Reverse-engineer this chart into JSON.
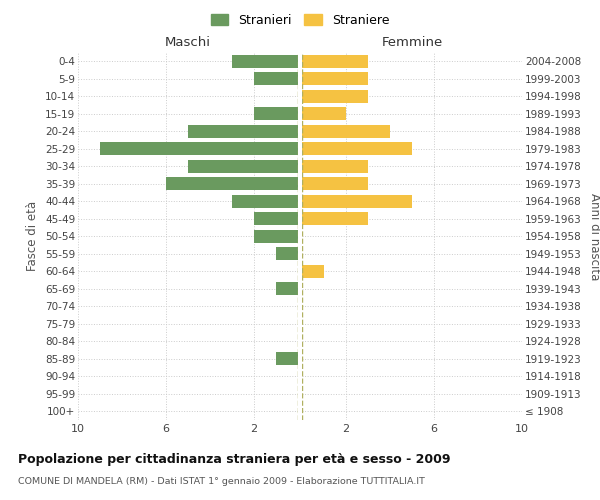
{
  "age_groups": [
    "0-4",
    "5-9",
    "10-14",
    "15-19",
    "20-24",
    "25-29",
    "30-34",
    "35-39",
    "40-44",
    "45-49",
    "50-54",
    "55-59",
    "60-64",
    "65-69",
    "70-74",
    "75-79",
    "80-84",
    "85-89",
    "90-94",
    "95-99",
    "100+"
  ],
  "birth_years": [
    "2004-2008",
    "1999-2003",
    "1994-1998",
    "1989-1993",
    "1984-1988",
    "1979-1983",
    "1974-1978",
    "1969-1973",
    "1964-1968",
    "1959-1963",
    "1954-1958",
    "1949-1953",
    "1944-1948",
    "1939-1943",
    "1934-1938",
    "1929-1933",
    "1924-1928",
    "1919-1923",
    "1914-1918",
    "1909-1913",
    "≤ 1908"
  ],
  "males": [
    3,
    2,
    0,
    2,
    5,
    9,
    5,
    6,
    3,
    2,
    2,
    1,
    0,
    1,
    0,
    0,
    0,
    1,
    0,
    0,
    0
  ],
  "females": [
    3,
    3,
    3,
    2,
    4,
    5,
    3,
    3,
    5,
    3,
    0,
    0,
    1,
    0,
    0,
    0,
    0,
    0,
    0,
    0,
    0
  ],
  "male_color": "#6a9a5f",
  "female_color": "#f5c242",
  "xlim": 10,
  "xlabel_left": "Maschi",
  "xlabel_right": "Femmine",
  "ylabel_left": "Fasce di età",
  "ylabel_right": "Anni di nascita",
  "legend_labels": [
    "Stranieri",
    "Straniere"
  ],
  "title": "Popolazione per cittadinanza straniera per età e sesso - 2009",
  "subtitle": "COMUNE DI MANDELA (RM) - Dati ISTAT 1° gennaio 2009 - Elaborazione TUTTITALIA.IT",
  "background_color": "#ffffff",
  "grid_color": "#cccccc",
  "dashed_line_color": "#b0b060",
  "xticks_left": [
    10,
    6,
    2
  ],
  "xticks_right": [
    2,
    6,
    10
  ]
}
